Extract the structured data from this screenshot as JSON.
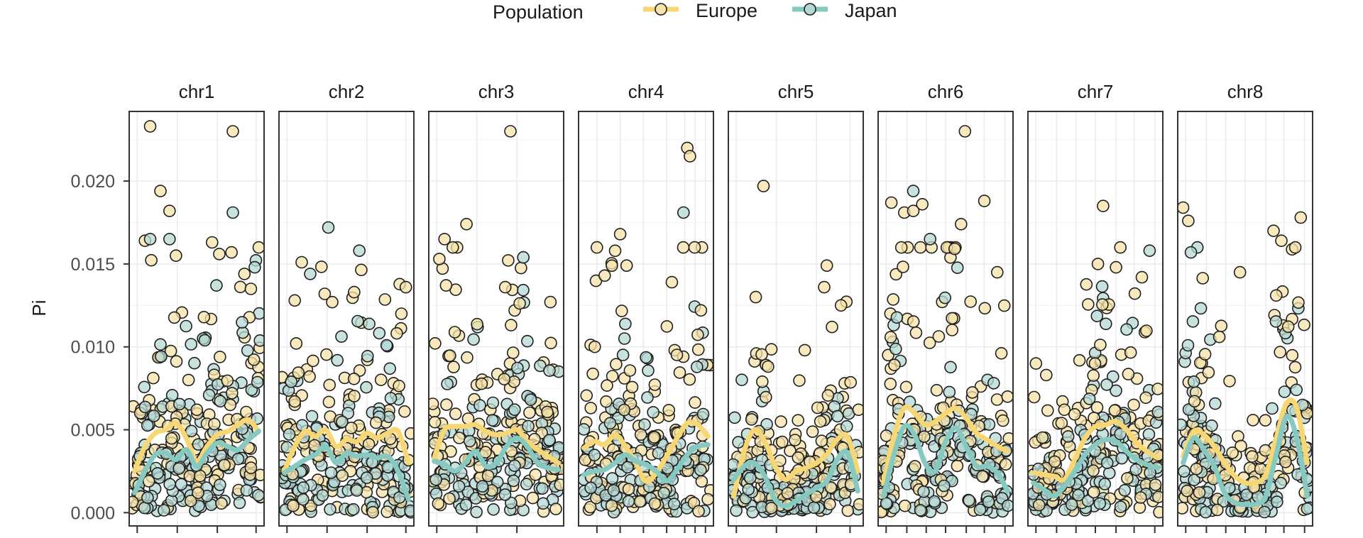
{
  "chart_data": {
    "type": "scatter",
    "ylabel": "Pi",
    "xlabel": "",
    "ylim": [
      -0.0008,
      0.0242
    ],
    "yticks": [
      0.0,
      0.005,
      0.01,
      0.015,
      0.02
    ],
    "ytick_labels": [
      "0.000",
      "0.005",
      "0.010",
      "0.015",
      "0.020"
    ],
    "legend": {
      "title": "Population",
      "placement": "top-center",
      "entries": [
        {
          "name": "Europe",
          "color": "#f7d774",
          "point_color": "#f5e2a8"
        },
        {
          "name": "Japan",
          "color": "#86c9c1",
          "point_color": "#b5d8d4"
        }
      ]
    },
    "panels": [
      {
        "label": "chr1",
        "xlim": [
          0,
          1
        ],
        "x_ticks": [
          0.04,
          0.35,
          0.66,
          0.96
        ],
        "smooth": {
          "x": [
            0.02,
            0.1,
            0.18,
            0.26,
            0.34,
            0.42,
            0.5,
            0.58,
            0.66,
            0.74,
            0.82,
            0.9,
            0.98
          ],
          "Europe": [
            0.0025,
            0.004,
            0.0048,
            0.005,
            0.0054,
            0.0045,
            0.0031,
            0.004,
            0.0047,
            0.0049,
            0.0053,
            0.0056,
            0.0049
          ],
          "Japan": [
            0.0012,
            0.0025,
            0.0035,
            0.0036,
            0.0032,
            0.0038,
            0.0028,
            0.0036,
            0.0042,
            0.004,
            0.0038,
            0.0044,
            0.0049
          ]
        },
        "outliers": [
          [
            0.14,
            0.0233,
            "Europe"
          ],
          [
            0.22,
            0.0194,
            "Europe"
          ],
          [
            0.29,
            0.0182,
            "Europe"
          ],
          [
            0.34,
            0.0155,
            "Europe"
          ],
          [
            0.1,
            0.0164,
            "Europe"
          ],
          [
            0.14,
            0.0165,
            "Japan"
          ],
          [
            0.29,
            0.0165,
            "Japan"
          ],
          [
            0.78,
            0.023,
            "Europe"
          ],
          [
            0.62,
            0.0163,
            "Europe"
          ],
          [
            0.78,
            0.0181,
            "Japan"
          ],
          [
            0.77,
            0.0157,
            "Europe"
          ],
          [
            0.87,
            0.0144,
            "Europe"
          ],
          [
            0.95,
            0.0148,
            "Japan"
          ],
          [
            0.92,
            0.0135,
            "Europe"
          ]
        ],
        "seed": 11
      },
      {
        "label": "chr2",
        "xlim": [
          0,
          1
        ],
        "x_ticks": [
          0.04,
          0.35,
          0.66,
          0.96
        ],
        "smooth": {
          "x": [
            0.02,
            0.1,
            0.18,
            0.26,
            0.34,
            0.42,
            0.5,
            0.58,
            0.66,
            0.74,
            0.82,
            0.9,
            0.98
          ],
          "Europe": [
            0.0025,
            0.004,
            0.0049,
            0.0046,
            0.005,
            0.004,
            0.0044,
            0.0043,
            0.0048,
            0.0045,
            0.0048,
            0.0049,
            0.003
          ],
          "Japan": [
            0.0024,
            0.0028,
            0.0032,
            0.0035,
            0.004,
            0.003,
            0.0036,
            0.0034,
            0.0035,
            0.0033,
            0.0034,
            0.0025,
            0.0008
          ]
        },
        "outliers": [
          [
            0.36,
            0.0172,
            "Japan"
          ],
          [
            0.6,
            0.0158,
            "Japan"
          ],
          [
            0.22,
            0.0144,
            "Japan"
          ],
          [
            0.56,
            0.0133,
            "Europe"
          ],
          [
            0.96,
            0.0136,
            "Europe"
          ],
          [
            0.1,
            0.0128,
            "Europe"
          ]
        ],
        "seed": 23
      },
      {
        "label": "chr3",
        "xlim": [
          0,
          1
        ],
        "x_ticks": [
          0.04,
          0.35,
          0.66
        ],
        "smooth": {
          "x": [
            0.02,
            0.1,
            0.18,
            0.26,
            0.34,
            0.42,
            0.5,
            0.58,
            0.66,
            0.74,
            0.82,
            0.9,
            0.98
          ],
          "Europe": [
            0.0033,
            0.005,
            0.0052,
            0.0052,
            0.0053,
            0.0049,
            0.0047,
            0.0048,
            0.005,
            0.0043,
            0.0038,
            0.0034,
            0.003
          ],
          "Japan": [
            0.0031,
            0.0029,
            0.0025,
            0.003,
            0.0037,
            0.0028,
            0.003,
            0.004,
            0.0045,
            0.004,
            0.003,
            0.0027,
            0.0026
          ]
        },
        "outliers": [
          [
            0.61,
            0.023,
            "Europe"
          ],
          [
            0.27,
            0.0174,
            "Europe"
          ],
          [
            0.1,
            0.0165,
            "Europe"
          ],
          [
            0.71,
            0.0154,
            "Japan"
          ],
          [
            0.06,
            0.0153,
            "Europe"
          ],
          [
            0.57,
            0.0136,
            "Europe"
          ],
          [
            0.92,
            0.0127,
            "Europe"
          ]
        ],
        "seed": 37
      },
      {
        "label": "chr4",
        "xlim": [
          0,
          1
        ],
        "x_ticks": [
          0.12,
          0.3,
          0.48,
          0.66,
          0.8,
          0.88,
          0.96
        ],
        "smooth": {
          "x": [
            0.02,
            0.1,
            0.18,
            0.26,
            0.34,
            0.42,
            0.5,
            0.58,
            0.66,
            0.74,
            0.82,
            0.9,
            0.98
          ],
          "Europe": [
            0.0039,
            0.0043,
            0.0041,
            0.0047,
            0.004,
            0.003,
            0.0019,
            0.0024,
            0.0034,
            0.0045,
            0.0054,
            0.0053,
            0.0046
          ],
          "Japan": [
            0.0023,
            0.0025,
            0.0026,
            0.003,
            0.0035,
            0.0031,
            0.0029,
            0.0025,
            0.0019,
            0.0026,
            0.0035,
            0.004,
            0.0041
          ]
        },
        "outliers": [
          [
            0.82,
            0.022,
            "Europe"
          ],
          [
            0.84,
            0.0215,
            "Europe"
          ],
          [
            0.12,
            0.016,
            "Europe"
          ],
          [
            0.3,
            0.0168,
            "Europe"
          ],
          [
            0.35,
            0.0149,
            "Europe"
          ],
          [
            0.79,
            0.0181,
            "Japan"
          ],
          [
            0.7,
            0.0139,
            "Europe"
          ],
          [
            0.18,
            0.0143,
            "Europe"
          ]
        ],
        "seed": 41
      },
      {
        "label": "chr5",
        "xlim": [
          0,
          1
        ],
        "x_ticks": [
          0.04,
          0.35,
          0.66,
          0.92
        ],
        "smooth": {
          "x": [
            0.02,
            0.1,
            0.18,
            0.26,
            0.34,
            0.42,
            0.5,
            0.58,
            0.66,
            0.74,
            0.82,
            0.9,
            0.98
          ],
          "Europe": [
            0.001,
            0.0037,
            0.005,
            0.0043,
            0.0028,
            0.002,
            0.0025,
            0.0027,
            0.003,
            0.0035,
            0.0044,
            0.0046,
            0.0025
          ],
          "Japan": [
            0.002,
            0.0028,
            0.003,
            0.0022,
            0.0008,
            0.0004,
            0.0007,
            0.0011,
            0.0015,
            0.0019,
            0.0032,
            0.0036,
            0.0013
          ]
        },
        "outliers": [
          [
            0.25,
            0.0197,
            "Europe"
          ],
          [
            0.74,
            0.0149,
            "Europe"
          ],
          [
            0.72,
            0.0136,
            "Europe"
          ],
          [
            0.19,
            0.013,
            "Europe"
          ],
          [
            0.85,
            0.0125,
            "Europe"
          ],
          [
            0.78,
            0.0112,
            "Europe"
          ],
          [
            0.57,
            0.0098,
            "Europe"
          ]
        ],
        "seed": 53
      },
      {
        "label": "chr6",
        "xlim": [
          0,
          1
        ],
        "x_ticks": [
          0.04,
          0.2,
          0.35,
          0.5,
          0.66,
          0.8,
          0.96
        ],
        "smooth": {
          "x": [
            0.02,
            0.1,
            0.18,
            0.26,
            0.34,
            0.42,
            0.5,
            0.58,
            0.66,
            0.74,
            0.82,
            0.9,
            0.98
          ],
          "Europe": [
            0.0018,
            0.0046,
            0.0063,
            0.006,
            0.0053,
            0.0055,
            0.006,
            0.0063,
            0.0057,
            0.0048,
            0.0044,
            0.004,
            0.0037
          ],
          "Japan": [
            0.001,
            0.0035,
            0.0052,
            0.0047,
            0.003,
            0.0025,
            0.0043,
            0.0051,
            0.004,
            0.0028,
            0.0028,
            0.0024,
            0.0013
          ]
        },
        "outliers": [
          [
            0.65,
            0.023,
            "Europe"
          ],
          [
            0.25,
            0.0194,
            "Japan"
          ],
          [
            0.08,
            0.0187,
            "Europe"
          ],
          [
            0.32,
            0.0186,
            "Europe"
          ],
          [
            0.18,
            0.0181,
            "Europe"
          ],
          [
            0.25,
            0.0182,
            "Europe"
          ],
          [
            0.8,
            0.0188,
            "Europe"
          ],
          [
            0.38,
            0.0165,
            "Japan"
          ],
          [
            0.9,
            0.0145,
            "Europe"
          ],
          [
            0.62,
            0.0174,
            "Europe"
          ]
        ],
        "seed": 67
      },
      {
        "label": "chr7",
        "xlim": [
          0,
          1
        ],
        "x_ticks": [
          0.04,
          0.2,
          0.35,
          0.5,
          0.66,
          0.8,
          0.96
        ],
        "smooth": {
          "x": [
            0.02,
            0.1,
            0.18,
            0.26,
            0.34,
            0.42,
            0.5,
            0.58,
            0.66,
            0.74,
            0.82,
            0.9,
            0.98
          ],
          "Europe": [
            0.0024,
            0.0023,
            0.0022,
            0.002,
            0.0032,
            0.0045,
            0.0052,
            0.0053,
            0.0055,
            0.005,
            0.0042,
            0.0037,
            0.0033
          ],
          "Japan": [
            0.0018,
            0.0014,
            0.001,
            0.0016,
            0.0025,
            0.0035,
            0.0041,
            0.0044,
            0.0043,
            0.0037,
            0.0032,
            0.0029,
            0.0027
          ]
        },
        "outliers": [
          [
            0.56,
            0.0185,
            "Europe"
          ],
          [
            0.52,
            0.015,
            "Europe"
          ],
          [
            0.86,
            0.0142,
            "Europe"
          ],
          [
            0.66,
            0.0148,
            "Europe"
          ],
          [
            0.92,
            0.0158,
            "Japan"
          ],
          [
            0.04,
            0.009,
            "Europe"
          ],
          [
            0.12,
            0.0083,
            "Europe"
          ]
        ],
        "seed": 79
      },
      {
        "label": "chr8",
        "xlim": [
          0,
          1
        ],
        "x_ticks": [
          0.04,
          0.2,
          0.35,
          0.5,
          0.66,
          0.8,
          0.96
        ],
        "smooth": {
          "x": [
            0.02,
            0.1,
            0.18,
            0.26,
            0.34,
            0.42,
            0.5,
            0.58,
            0.66,
            0.74,
            0.82,
            0.9,
            0.98
          ],
          "Europe": [
            0.0034,
            0.0049,
            0.0047,
            0.004,
            0.003,
            0.0022,
            0.0018,
            0.0018,
            0.0023,
            0.0045,
            0.0066,
            0.0063,
            0.003
          ],
          "Japan": [
            0.003,
            0.0045,
            0.0038,
            0.0028,
            0.0012,
            0.0006,
            0.0005,
            0.0005,
            0.001,
            0.0035,
            0.0058,
            0.0045,
            0.001
          ]
        },
        "outliers": [
          [
            0.02,
            0.0184,
            "Europe"
          ],
          [
            0.06,
            0.0176,
            "Europe"
          ],
          [
            0.13,
            0.016,
            "Japan"
          ],
          [
            0.93,
            0.0178,
            "Europe"
          ],
          [
            0.72,
            0.017,
            "Europe"
          ],
          [
            0.78,
            0.0164,
            "Europe"
          ],
          [
            0.08,
            0.0157,
            "Japan"
          ],
          [
            0.46,
            0.0145,
            "Europe"
          ],
          [
            0.74,
            0.0131,
            "Europe"
          ],
          [
            0.3,
            0.0106,
            "Europe"
          ]
        ],
        "seed": 97
      }
    ]
  }
}
